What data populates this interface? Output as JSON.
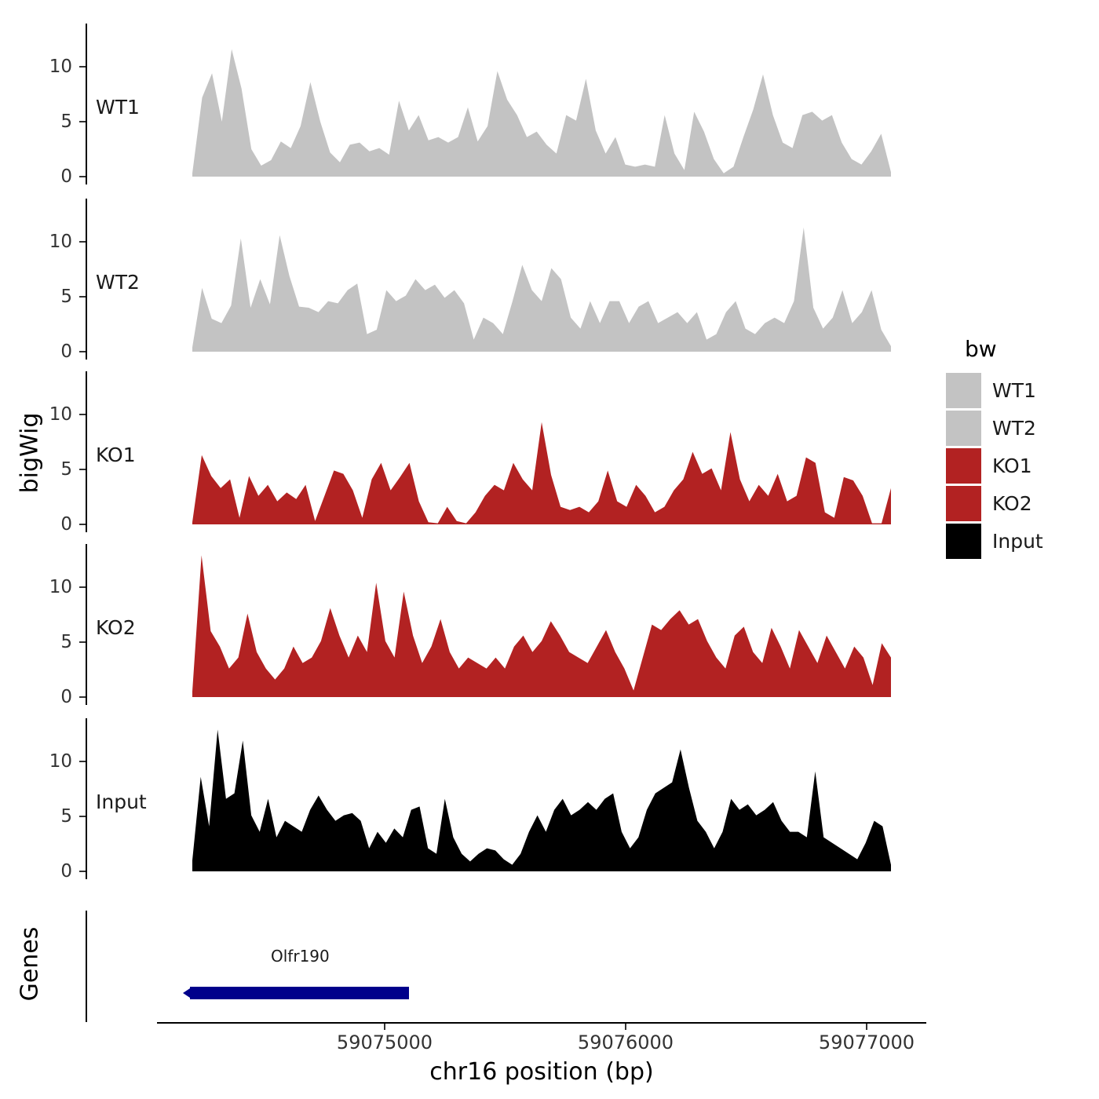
{
  "figure": {
    "y_axis_label_top": "bigWig",
    "y_axis_label_bottom": "Genes",
    "x_axis_title": "chr16 position (bp)"
  },
  "y_ticks": [
    "10",
    "5",
    "0"
  ],
  "x_ticks": [
    "59075000",
    "59076000",
    "59077000"
  ],
  "tracks": [
    {
      "name": "WT1"
    },
    {
      "name": "WT2"
    },
    {
      "name": "KO1"
    },
    {
      "name": "KO2"
    },
    {
      "name": "Input"
    }
  ],
  "legend": {
    "title": "bw",
    "items": [
      {
        "label": "WT1",
        "color": "#c3c3c3"
      },
      {
        "label": "WT2",
        "color": "#c3c3c3"
      },
      {
        "label": "KO1",
        "color": "#b22222"
      },
      {
        "label": "KO2",
        "color": "#b22222"
      },
      {
        "label": "Input",
        "color": "#000000"
      }
    ]
  },
  "gene": {
    "label": "Olfr190"
  },
  "chart_data": {
    "type": "area",
    "title": "",
    "xlabel": "chr16 position (bp)",
    "ylabel": "bigWig",
    "x_range": [
      59074200,
      59077100
    ],
    "x_tick_values": [
      59075000,
      59076000,
      59077000
    ],
    "y_ticks": [
      0,
      5,
      10
    ],
    "ylim": [
      0,
      13
    ],
    "grid": false,
    "legend_position": "right",
    "series": [
      {
        "name": "WT1",
        "color": "#c3c3c3",
        "values": [
          0.3,
          7.2,
          9.4,
          5.0,
          11.6,
          8.0,
          2.5,
          1.0,
          1.5,
          3.2,
          2.6,
          4.6,
          8.6,
          5.0,
          2.2,
          1.3,
          2.9,
          3.1,
          2.3,
          2.6,
          2.0,
          6.9,
          4.2,
          5.6,
          3.3,
          3.6,
          3.1,
          3.6,
          6.3,
          3.2,
          4.6,
          9.6,
          7.0,
          5.6,
          3.6,
          4.1,
          2.9,
          2.1,
          5.6,
          5.1,
          8.9,
          4.2,
          2.1,
          3.6,
          1.1,
          0.9,
          1.1,
          0.9,
          5.6,
          2.1,
          0.6,
          5.9,
          4.1,
          1.6,
          0.3,
          0.9,
          3.6,
          6.1,
          9.3,
          5.6,
          3.1,
          2.6,
          5.6,
          5.9,
          5.1,
          5.6,
          3.1,
          1.6,
          1.1,
          2.3,
          3.9,
          0.4
        ]
      },
      {
        "name": "WT2",
        "color": "#c3c3c3",
        "values": [
          0.4,
          5.8,
          3.0,
          2.6,
          4.2,
          10.3,
          4.0,
          6.6,
          4.3,
          10.6,
          6.9,
          4.1,
          4.0,
          3.6,
          4.6,
          4.4,
          5.6,
          6.2,
          1.6,
          2.0,
          5.6,
          4.6,
          5.1,
          6.6,
          5.6,
          6.1,
          4.9,
          5.6,
          4.4,
          1.1,
          3.1,
          2.6,
          1.6,
          4.6,
          7.9,
          5.6,
          4.6,
          7.6,
          6.6,
          3.1,
          2.1,
          4.6,
          2.6,
          4.6,
          4.6,
          2.6,
          4.1,
          4.6,
          2.6,
          3.1,
          3.6,
          2.6,
          3.6,
          1.1,
          1.6,
          3.6,
          4.6,
          2.1,
          1.6,
          2.6,
          3.1,
          2.6,
          4.6,
          11.3,
          4.0,
          2.1,
          3.1,
          5.6,
          2.6,
          3.6,
          5.6,
          2.0,
          0.5
        ]
      },
      {
        "name": "KO1",
        "color": "#b22222",
        "values": [
          0.2,
          6.3,
          4.4,
          3.3,
          4.1,
          0.6,
          4.4,
          2.6,
          3.6,
          2.1,
          2.9,
          2.3,
          3.6,
          0.3,
          2.6,
          4.9,
          4.6,
          3.1,
          0.6,
          4.1,
          5.6,
          3.1,
          4.3,
          5.6,
          2.1,
          0.2,
          0.1,
          1.6,
          0.3,
          0.1,
          1.1,
          2.6,
          3.6,
          3.1,
          5.6,
          4.1,
          3.1,
          9.3,
          4.5,
          1.6,
          1.3,
          1.6,
          1.1,
          2.1,
          4.9,
          2.1,
          1.6,
          3.6,
          2.6,
          1.1,
          1.6,
          3.1,
          4.1,
          6.6,
          4.6,
          5.1,
          3.1,
          8.4,
          4.1,
          2.1,
          3.6,
          2.6,
          4.6,
          2.1,
          2.6,
          6.1,
          5.6,
          1.1,
          0.6,
          4.3,
          4.0,
          2.6,
          0.1,
          0.1,
          3.3
        ]
      },
      {
        "name": "KO2",
        "color": "#b22222",
        "values": [
          0.5,
          12.9,
          6.0,
          4.6,
          2.6,
          3.6,
          7.6,
          4.1,
          2.6,
          1.6,
          2.6,
          4.6,
          3.1,
          3.6,
          5.1,
          8.1,
          5.6,
          3.6,
          5.6,
          4.1,
          10.4,
          5.1,
          3.6,
          9.6,
          5.6,
          3.1,
          4.6,
          7.1,
          4.1,
          2.6,
          3.6,
          3.1,
          2.6,
          3.6,
          2.6,
          4.6,
          5.6,
          4.1,
          5.1,
          6.9,
          5.6,
          4.1,
          3.6,
          3.1,
          4.6,
          6.1,
          4.1,
          2.6,
          0.6,
          3.6,
          6.6,
          6.1,
          7.1,
          7.9,
          6.6,
          7.1,
          5.1,
          3.6,
          2.6,
          5.6,
          6.4,
          4.1,
          3.1,
          6.3,
          4.6,
          2.6,
          6.1,
          4.6,
          3.1,
          5.6,
          4.1,
          2.6,
          4.6,
          3.6,
          1.1,
          4.9,
          3.6
        ]
      },
      {
        "name": "Input",
        "color": "#000000",
        "values": [
          1.0,
          8.6,
          4.1,
          12.9,
          6.6,
          7.1,
          11.9,
          5.1,
          3.6,
          6.6,
          3.1,
          4.6,
          4.1,
          3.6,
          5.6,
          6.9,
          5.6,
          4.6,
          5.1,
          5.3,
          4.6,
          2.1,
          3.6,
          2.6,
          3.9,
          3.1,
          5.6,
          5.9,
          2.1,
          1.6,
          6.6,
          3.1,
          1.6,
          0.9,
          1.6,
          2.1,
          1.9,
          1.1,
          0.6,
          1.6,
          3.6,
          5.1,
          3.6,
          5.6,
          6.6,
          5.1,
          5.6,
          6.3,
          5.6,
          6.6,
          7.1,
          3.6,
          2.1,
          3.1,
          5.6,
          7.1,
          7.6,
          8.1,
          11.1,
          7.6,
          4.6,
          3.6,
          2.1,
          3.6,
          6.6,
          5.6,
          6.1,
          5.1,
          5.6,
          6.3,
          4.6,
          3.6,
          3.6,
          3.1,
          9.1,
          3.1,
          2.6,
          2.1,
          1.6,
          1.1,
          2.6,
          4.6,
          4.1,
          0.6
        ]
      }
    ],
    "genes": [
      {
        "name": "Olfr190",
        "start": 59074190,
        "end": 59075100,
        "strand": "-",
        "color": "#00008b"
      }
    ]
  }
}
